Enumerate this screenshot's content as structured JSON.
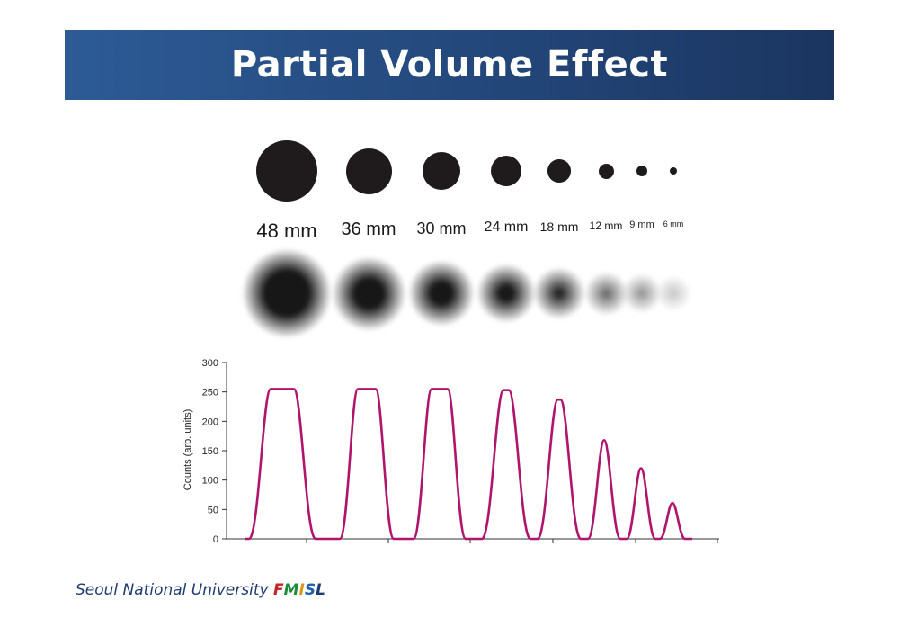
{
  "slide": {
    "title": "Partial Volume Effect"
  },
  "spheres": {
    "sizes_mm": [
      48,
      36,
      30,
      24,
      18,
      12,
      9,
      6
    ],
    "labels": [
      "48 mm",
      "36 mm",
      "30 mm",
      "24 mm",
      "18 mm",
      "12 mm",
      "9 mm",
      "6 mm"
    ],
    "sharp_color": "#1f1b1c",
    "blurred_peak_intensity_fraction": [
      1.0,
      1.0,
      1.0,
      0.99,
      0.93,
      0.66,
      0.47,
      0.24
    ]
  },
  "chart_data": {
    "type": "line",
    "title": "",
    "xlabel": "",
    "ylabel": "Counts (arb. units)",
    "ylim": [
      0,
      300
    ],
    "yticks": [
      0,
      50,
      100,
      150,
      200,
      250,
      300
    ],
    "x_ticks_labeled": false,
    "series": [
      {
        "color": "#b0156e",
        "peaks": [
          {
            "sphere": "48 mm",
            "max": 255,
            "shape": "plateau"
          },
          {
            "sphere": "36 mm",
            "max": 255,
            "shape": "plateau"
          },
          {
            "sphere": "30 mm",
            "max": 255,
            "shape": "plateau"
          },
          {
            "sphere": "24 mm",
            "max": 253,
            "shape": "rounded"
          },
          {
            "sphere": "18 mm",
            "max": 237,
            "shape": "rounded"
          },
          {
            "sphere": "12 mm",
            "max": 168,
            "shape": "peak"
          },
          {
            "sphere": "9 mm",
            "max": 120,
            "shape": "peak"
          },
          {
            "sphere": "6 mm",
            "max": 61,
            "shape": "peak"
          }
        ]
      }
    ]
  },
  "footer": {
    "prefix": "Seoul National University ",
    "letters": [
      {
        "text": "F",
        "color": "#c0252b"
      },
      {
        "text": "M",
        "color": "#1e8c3a"
      },
      {
        "text": "I",
        "color": "#d89a1d"
      },
      {
        "text": "S",
        "color": "#1f5fae"
      },
      {
        "text": "L",
        "color": "#1f3b73"
      }
    ]
  }
}
